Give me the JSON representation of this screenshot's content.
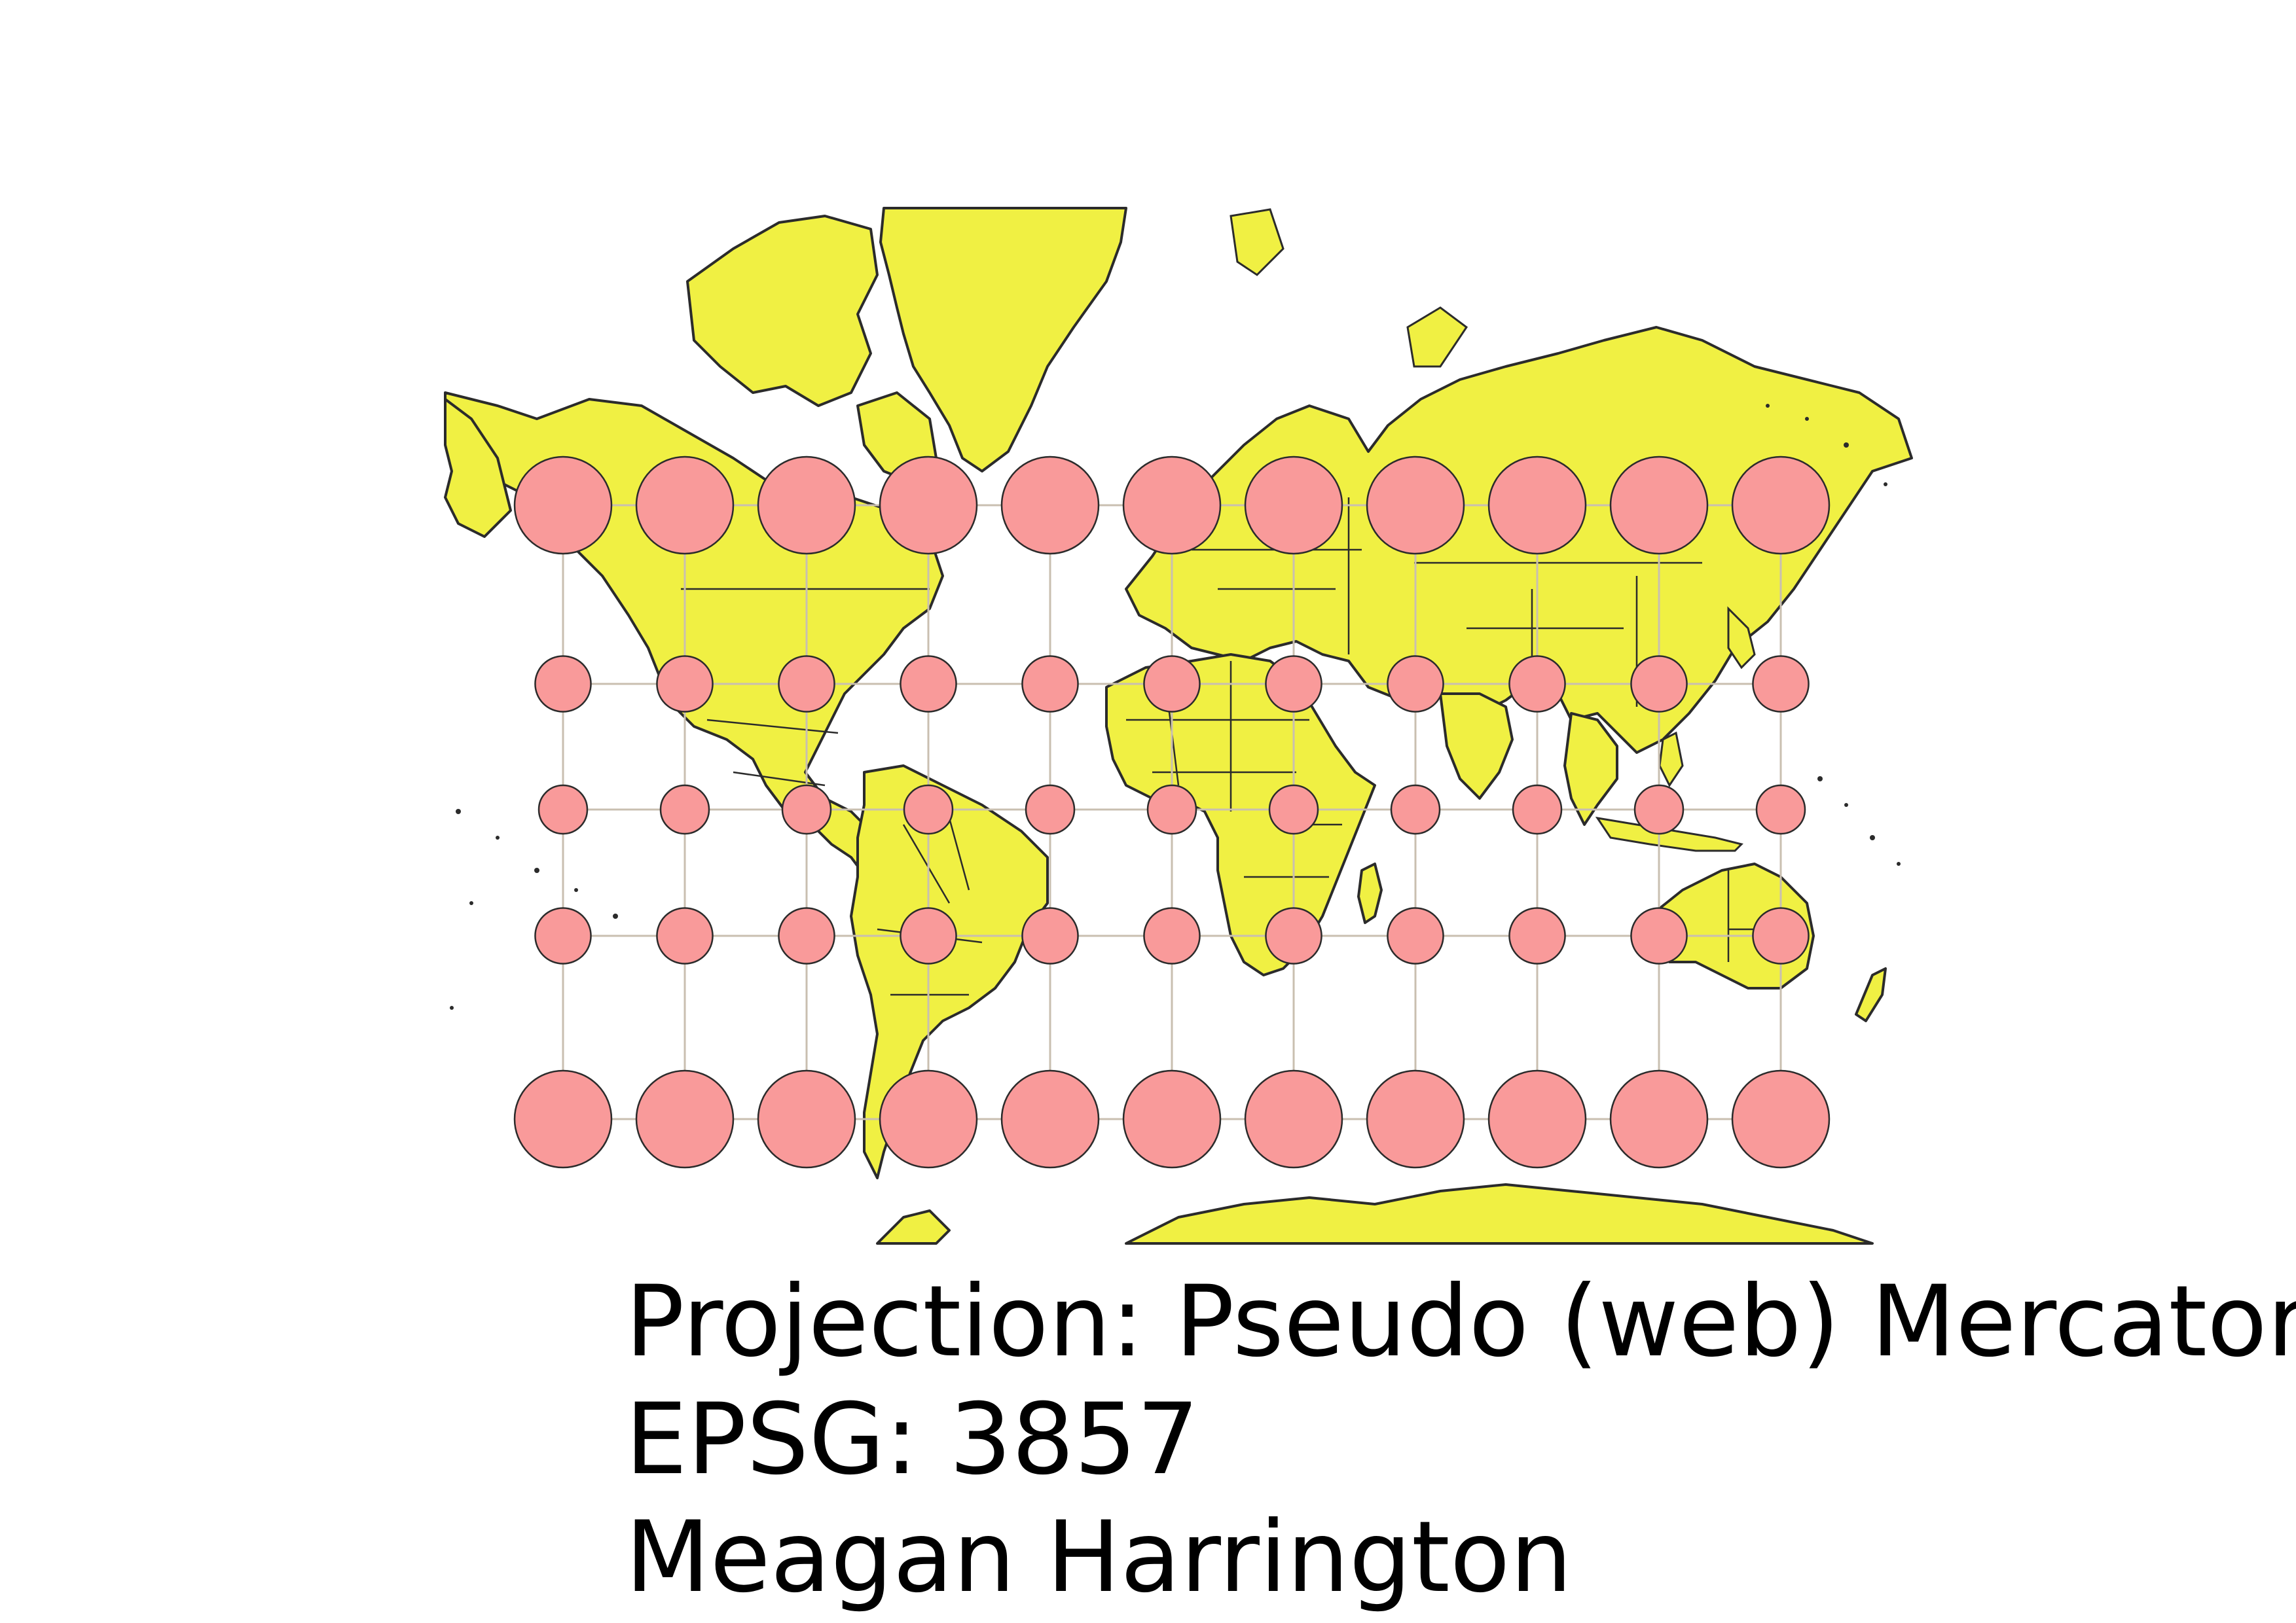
{
  "map": {
    "colors": {
      "land": "#f0f043",
      "coastline": "#2b2b2b",
      "indicatrix_fill": "#f99a9a",
      "graticule": "#c9bfb0",
      "background": "#ffffff"
    },
    "graticule": {
      "longitudes_deg": [
        -150,
        -120,
        -90,
        -60,
        -30,
        0,
        30,
        60,
        90,
        120,
        150
      ],
      "latitudes_deg": [
        60,
        30,
        0,
        -30,
        -60
      ]
    },
    "indicatrix_rows": [
      {
        "lat_deg": 60,
        "relative_size": 2.0
      },
      {
        "lat_deg": 30,
        "relative_size": 1.15
      },
      {
        "lat_deg": 0,
        "relative_size": 1.0
      },
      {
        "lat_deg": -30,
        "relative_size": 1.15
      },
      {
        "lat_deg": -60,
        "relative_size": 2.0
      }
    ]
  },
  "legend": {
    "projection": "Projection: Pseudo (web) Mercator",
    "epsg": "EPSG: 3857",
    "author": "Meagan Harrington"
  }
}
